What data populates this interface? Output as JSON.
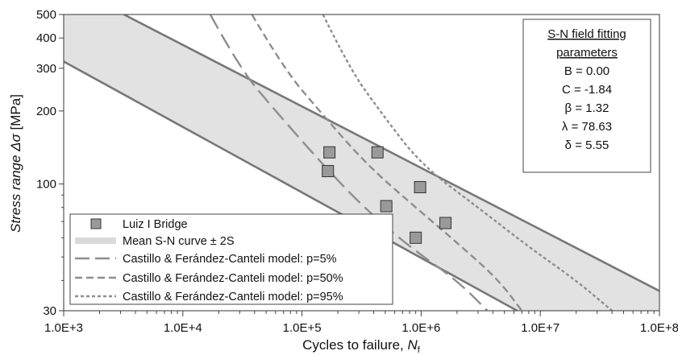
{
  "chart_data": {
    "type": "scatter",
    "xlabel": {
      "main": "Cycles to failure, ",
      "var": "N",
      "sub": "f"
    },
    "ylabel": {
      "italic": "Stress range Δσ",
      "unit": "[MPa]"
    },
    "x_scale": "log",
    "y_scale": "log",
    "xlim": [
      1000,
      100000000
    ],
    "ylim": [
      30,
      500
    ],
    "x_ticks": [
      {
        "value": 1000,
        "label": "1.0E+3"
      },
      {
        "value": 10000,
        "label": "1.0E+4"
      },
      {
        "value": 100000,
        "label": "1.0E+5"
      },
      {
        "value": 1000000,
        "label": "1.0E+6"
      },
      {
        "value": 10000000,
        "label": "1.0E+7"
      },
      {
        "value": 100000000,
        "label": "1.0E+8"
      }
    ],
    "y_ticks": [
      {
        "value": 30,
        "label": "30"
      },
      {
        "value": 100,
        "label": "100"
      },
      {
        "value": 200,
        "label": "200"
      },
      {
        "value": 300,
        "label": "300"
      },
      {
        "value": 400,
        "label": "400"
      },
      {
        "value": 500,
        "label": "500"
      }
    ],
    "grid": false,
    "colors": {
      "band_fill": "#e2e2e2",
      "band_edge": "#777777",
      "marker_fill": "#9a9a9a",
      "marker_edge": "#333333",
      "model_lines": "#8e8e8e",
      "legend_band": "#d9d9d9"
    },
    "series": [
      {
        "name": "Luiz I Bridge",
        "kind": "markers",
        "marker": "square",
        "points": [
          {
            "x": 170000,
            "y": 135
          },
          {
            "x": 165000,
            "y": 113
          },
          {
            "x": 430000,
            "y": 135
          },
          {
            "x": 510000,
            "y": 81
          },
          {
            "x": 980000,
            "y": 97
          },
          {
            "x": 900000,
            "y": 60
          },
          {
            "x": 1600000,
            "y": 69
          }
        ]
      },
      {
        "name": "Mean S-N curve ± 2S",
        "kind": "band",
        "upper": [
          {
            "x": 3200,
            "y": 500
          },
          {
            "x": 100000000,
            "y": 36.2
          }
        ],
        "lower": [
          {
            "x": 1000,
            "y": 320
          },
          {
            "x": 6400000,
            "y": 30
          }
        ]
      },
      {
        "name": "Castillo & Ferández-Canteli model: p=5%",
        "kind": "line",
        "dash": "long",
        "points": [
          {
            "x": 17000,
            "y": 500
          },
          {
            "x": 30000,
            "y": 300
          },
          {
            "x": 60000,
            "y": 200
          },
          {
            "x": 150000,
            "y": 120
          },
          {
            "x": 330000,
            "y": 80
          },
          {
            "x": 800000,
            "y": 55
          },
          {
            "x": 2000000,
            "y": 40
          },
          {
            "x": 3600000,
            "y": 30
          }
        ]
      },
      {
        "name": "Castillo & Ferández-Canteli model: p=50%",
        "kind": "line",
        "dash": "medium",
        "points": [
          {
            "x": 38000,
            "y": 500
          },
          {
            "x": 70000,
            "y": 300
          },
          {
            "x": 140000,
            "y": 200
          },
          {
            "x": 350000,
            "y": 120
          },
          {
            "x": 900000,
            "y": 80
          },
          {
            "x": 2200000,
            "y": 55
          },
          {
            "x": 4500000,
            "y": 40
          },
          {
            "x": 7000000,
            "y": 30
          }
        ]
      },
      {
        "name": "Castillo & Ferández-Canteli model: p=95%",
        "kind": "line",
        "dash": "short",
        "points": [
          {
            "x": 150000,
            "y": 500
          },
          {
            "x": 250000,
            "y": 300
          },
          {
            "x": 450000,
            "y": 200
          },
          {
            "x": 1000000,
            "y": 120
          },
          {
            "x": 3000000,
            "y": 80
          },
          {
            "x": 8000000,
            "y": 55
          },
          {
            "x": 20000000,
            "y": 40
          },
          {
            "x": 40000000,
            "y": 30
          }
        ]
      }
    ],
    "legend": {
      "placement": "bottom-left",
      "entries": [
        "Luiz I Bridge",
        "Mean S-N curve ± 2S",
        "Castillo & Ferández-Canteli model: p=5%",
        "Castillo & Ferández-Canteli model: p=50%",
        "Castillo & Ferández-Canteli model: p=95%"
      ]
    },
    "parameters_box": {
      "placement": "top-right",
      "title_lines": [
        "S-N field fitting",
        "parameters"
      ],
      "lines": [
        "B = 0.00",
        "C = -1.84",
        "β = 1.32",
        "λ = 78.63",
        "δ = 5.55"
      ]
    }
  }
}
